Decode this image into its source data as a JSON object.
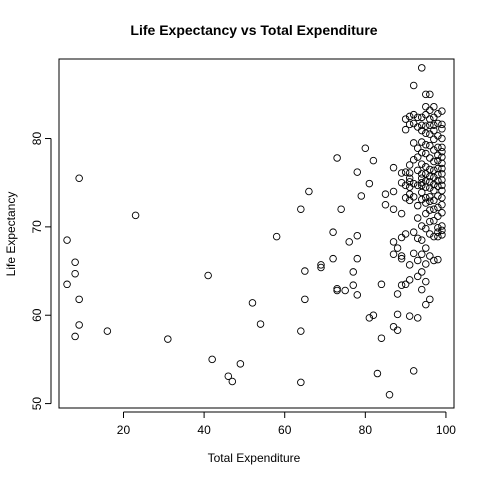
{
  "chart_data": {
    "type": "scatter",
    "title": "Life Expectancy vs  Total Expenditure",
    "xlabel": "Total Expenditure",
    "ylabel": "Life Expectancy",
    "xlim": [
      4,
      102
    ],
    "ylim": [
      49.5,
      89
    ],
    "xticks": [
      20,
      40,
      60,
      80,
      100
    ],
    "yticks": [
      50,
      60,
      70,
      80
    ],
    "grid": false,
    "legend": "none",
    "points": [
      [
        6,
        68.5
      ],
      [
        6,
        63.5
      ],
      [
        8,
        66
      ],
      [
        8,
        64.7
      ],
      [
        8,
        57.6
      ],
      [
        9,
        75.5
      ],
      [
        9,
        61.8
      ],
      [
        9,
        58.9
      ],
      [
        16,
        58.2
      ],
      [
        23,
        71.3
      ],
      [
        31,
        57.3
      ],
      [
        41,
        64.5
      ],
      [
        42,
        55
      ],
      [
        46,
        53.1
      ],
      [
        47,
        52.5
      ],
      [
        49,
        54.5
      ],
      [
        52,
        61.4
      ],
      [
        54,
        59
      ],
      [
        58,
        68.9
      ],
      [
        64,
        72
      ],
      [
        64,
        58.2
      ],
      [
        64,
        52.4
      ],
      [
        65,
        65
      ],
      [
        65,
        61.8
      ],
      [
        66,
        74
      ],
      [
        69,
        65.7
      ],
      [
        69,
        65.4
      ],
      [
        72,
        69.4
      ],
      [
        72,
        66.4
      ],
      [
        73,
        77.8
      ],
      [
        73,
        63
      ],
      [
        73,
        62.8
      ],
      [
        74,
        72
      ],
      [
        75,
        62.8
      ],
      [
        76,
        68.3
      ],
      [
        77,
        64.9
      ],
      [
        77,
        63.4
      ],
      [
        78,
        76.2
      ],
      [
        78,
        69
      ],
      [
        78,
        66.4
      ],
      [
        78,
        62.3
      ],
      [
        79,
        73.5
      ],
      [
        80,
        78.9
      ],
      [
        81,
        74.9
      ],
      [
        81,
        59.7
      ],
      [
        82,
        77.5
      ],
      [
        82,
        60
      ],
      [
        83,
        53.4
      ],
      [
        84,
        57.4
      ],
      [
        84,
        63.5
      ],
      [
        85,
        72.5
      ],
      [
        85,
        73.7
      ],
      [
        86,
        51
      ],
      [
        87,
        76.7
      ],
      [
        87,
        74
      ],
      [
        87,
        72
      ],
      [
        87,
        68.3
      ],
      [
        87,
        66.9
      ],
      [
        87,
        58.7
      ],
      [
        88,
        67.6
      ],
      [
        88,
        62.4
      ],
      [
        88,
        58.3
      ],
      [
        88,
        60.1
      ],
      [
        89,
        76.1
      ],
      [
        89,
        75
      ],
      [
        89,
        71.5
      ],
      [
        89,
        68.8
      ],
      [
        89,
        66.7
      ],
      [
        89,
        66.4
      ],
      [
        89,
        63.4
      ],
      [
        90,
        82.2
      ],
      [
        90,
        81
      ],
      [
        90,
        76.2
      ],
      [
        90,
        74.7
      ],
      [
        90,
        73.3
      ],
      [
        90,
        69.2
      ],
      [
        90,
        63.5
      ],
      [
        91,
        82.5
      ],
      [
        91,
        81.6
      ],
      [
        91,
        77
      ],
      [
        91,
        76.1
      ],
      [
        91,
        75.5
      ],
      [
        91,
        75.1
      ],
      [
        91,
        74.5
      ],
      [
        91,
        73.7
      ],
      [
        91,
        73
      ],
      [
        91,
        65.7
      ],
      [
        91,
        64
      ],
      [
        91,
        59.9
      ],
      [
        92,
        86
      ],
      [
        92,
        82.7
      ],
      [
        92,
        81.7
      ],
      [
        92,
        79.5
      ],
      [
        92,
        77.6
      ],
      [
        92,
        74.9
      ],
      [
        92,
        73.4
      ],
      [
        92,
        69.4
      ],
      [
        92,
        67
      ],
      [
        92,
        53.7
      ],
      [
        93,
        82.4
      ],
      [
        93,
        81.3
      ],
      [
        93,
        78.9
      ],
      [
        93,
        77.9
      ],
      [
        93,
        76.4
      ],
      [
        93,
        74.7
      ],
      [
        93,
        72.4
      ],
      [
        93,
        71
      ],
      [
        93,
        68.7
      ],
      [
        93,
        66.2
      ],
      [
        93,
        64.4
      ],
      [
        93,
        59.7
      ],
      [
        94,
        88
      ],
      [
        94,
        82.4
      ],
      [
        94,
        81.5
      ],
      [
        94,
        80.9
      ],
      [
        94,
        79.6
      ],
      [
        94,
        78.4
      ],
      [
        94,
        77.1
      ],
      [
        94,
        76
      ],
      [
        94,
        75.5
      ],
      [
        94,
        75
      ],
      [
        94,
        74.7
      ],
      [
        94,
        73.9
      ],
      [
        94,
        73.1
      ],
      [
        94,
        70.1
      ],
      [
        94,
        68.5
      ],
      [
        94,
        66.9
      ],
      [
        94,
        64.9
      ],
      [
        94,
        62.9
      ],
      [
        95,
        85
      ],
      [
        95,
        83.6
      ],
      [
        95,
        82.7
      ],
      [
        95,
        81.4
      ],
      [
        95,
        80.6
      ],
      [
        95,
        79.3
      ],
      [
        95,
        78.3
      ],
      [
        95,
        76.8
      ],
      [
        95,
        76
      ],
      [
        95,
        75.2
      ],
      [
        95,
        74.5
      ],
      [
        95,
        73.3
      ],
      [
        95,
        72.7
      ],
      [
        95,
        71.5
      ],
      [
        95,
        69.8
      ],
      [
        95,
        67.6
      ],
      [
        95,
        65.8
      ],
      [
        95,
        63.8
      ],
      [
        95,
        61.2
      ],
      [
        96,
        85
      ],
      [
        96,
        83.2
      ],
      [
        96,
        82.2
      ],
      [
        96,
        81.5
      ],
      [
        96,
        80.5
      ],
      [
        96,
        79.2
      ],
      [
        96,
        77.8
      ],
      [
        96,
        76.5
      ],
      [
        96,
        75.7
      ],
      [
        96,
        75.1
      ],
      [
        96,
        74.4
      ],
      [
        96,
        73.4
      ],
      [
        96,
        72.9
      ],
      [
        96,
        71.9
      ],
      [
        96,
        70.6
      ],
      [
        96,
        69.2
      ],
      [
        96,
        66.7
      ],
      [
        96,
        61.8
      ],
      [
        97,
        83.6
      ],
      [
        97,
        82.4
      ],
      [
        97,
        81.5
      ],
      [
        97,
        80.9
      ],
      [
        97,
        79.9
      ],
      [
        97,
        78.7
      ],
      [
        97,
        77.4
      ],
      [
        97,
        76.4
      ],
      [
        97,
        75.6
      ],
      [
        97,
        74.8
      ],
      [
        97,
        74.1
      ],
      [
        97,
        73
      ],
      [
        97,
        72
      ],
      [
        97,
        70.7
      ],
      [
        97,
        68.9
      ],
      [
        97,
        66.2
      ],
      [
        98,
        82.8
      ],
      [
        98,
        81.7
      ],
      [
        98,
        80.3
      ],
      [
        98,
        79
      ],
      [
        98,
        78.1
      ],
      [
        98,
        77.5
      ],
      [
        98,
        76.6
      ],
      [
        98,
        75.9
      ],
      [
        98,
        75.2
      ],
      [
        98,
        74.6
      ],
      [
        98,
        73.5
      ],
      [
        98,
        72.2
      ],
      [
        98,
        71.2
      ],
      [
        98,
        69.9
      ],
      [
        98,
        69.4
      ],
      [
        98,
        68.9
      ],
      [
        98,
        66.3
      ],
      [
        99,
        83.1
      ],
      [
        99,
        81.6
      ],
      [
        99,
        81.1
      ],
      [
        99,
        80
      ],
      [
        99,
        79
      ],
      [
        99,
        78.5
      ],
      [
        99,
        77.9
      ],
      [
        99,
        77.2
      ],
      [
        99,
        76.6
      ],
      [
        99,
        76
      ],
      [
        99,
        75.3
      ],
      [
        99,
        74.7
      ],
      [
        99,
        74.1
      ],
      [
        99,
        73.3
      ],
      [
        99,
        72.5
      ],
      [
        99,
        71.6
      ],
      [
        99,
        70.1
      ],
      [
        99,
        69.6
      ],
      [
        99,
        69.1
      ]
    ]
  }
}
